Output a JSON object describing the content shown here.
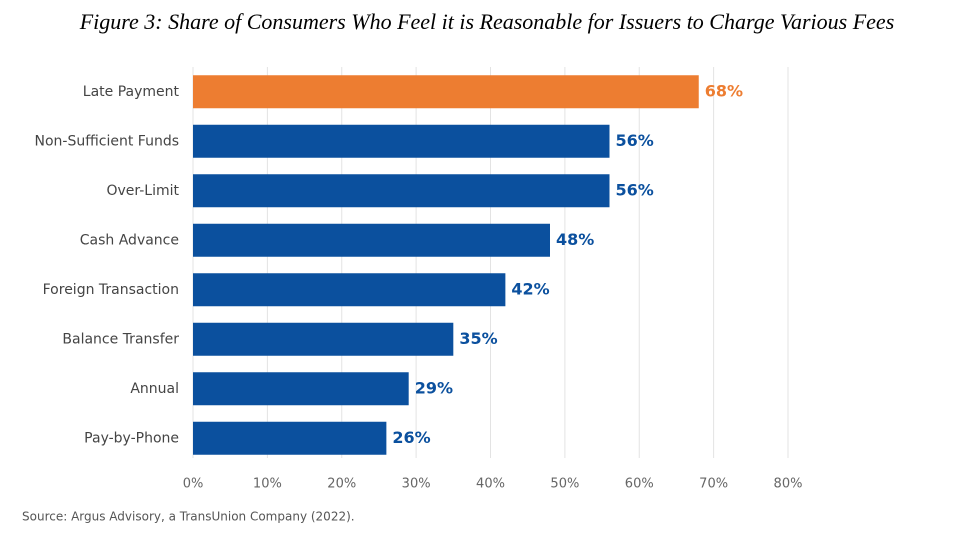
{
  "chart_data": {
    "type": "bar",
    "orientation": "horizontal",
    "title": "Figure 3: Share of Consumers Who Feel it is Reasonable for Issuers to Charge Various Fees",
    "source": "Source: Argus Advisory, a TransUnion Company (2022).",
    "categories": [
      "Late Payment",
      "Non-Sufficient Funds",
      "Over-Limit",
      "Cash Advance",
      "Foreign Transaction",
      "Balance Transfer",
      "Annual",
      "Pay-by-Phone"
    ],
    "values": [
      68,
      56,
      56,
      48,
      42,
      35,
      29,
      26
    ],
    "value_labels": [
      "68%",
      "56%",
      "56%",
      "48%",
      "42%",
      "35%",
      "29%",
      "26%"
    ],
    "colors": [
      "#ed7d31",
      "#0b509e",
      "#0b509e",
      "#0b509e",
      "#0b509e",
      "#0b509e",
      "#0b509e",
      "#0b509e"
    ],
    "xlim": [
      0,
      80
    ],
    "xticks": [
      {
        "value": 0,
        "label": "0%"
      },
      {
        "value": 10,
        "label": "10%"
      },
      {
        "value": 20,
        "label": "20%"
      },
      {
        "value": 30,
        "label": "30%"
      },
      {
        "value": 40,
        "label": "40%"
      },
      {
        "value": 50,
        "label": "50%"
      },
      {
        "value": 60,
        "label": "60%"
      },
      {
        "value": 70,
        "label": "70%"
      },
      {
        "value": 80,
        "label": "80%"
      }
    ],
    "grid": true
  }
}
